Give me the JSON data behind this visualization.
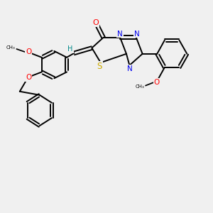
{
  "bg_color": "#f0f0f0",
  "atom_colors": {
    "O": "#ff0000",
    "N": "#0000ee",
    "S": "#ccaa00",
    "C": "#000000",
    "H": "#008888"
  },
  "bond_color": "#000000",
  "bond_width": 1.4,
  "figsize": [
    3.0,
    3.0
  ],
  "dpi": 100
}
